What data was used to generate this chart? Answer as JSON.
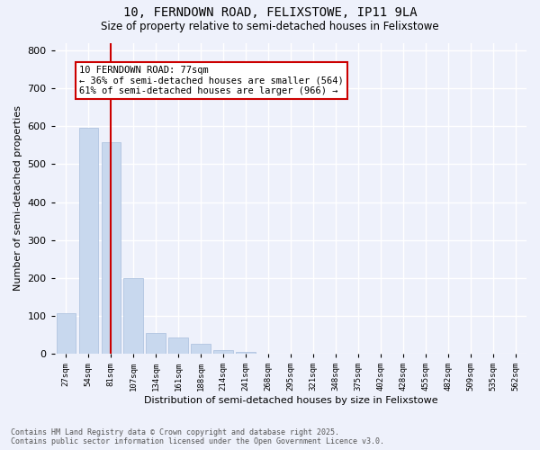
{
  "title_line1": "10, FERNDOWN ROAD, FELIXSTOWE, IP11 9LA",
  "title_line2": "Size of property relative to semi-detached houses in Felixstowe",
  "xlabel": "Distribution of semi-detached houses by size in Felixstowe",
  "ylabel": "Number of semi-detached properties",
  "bar_color": "#c8d8ee",
  "bar_edge_color": "#a8bedd",
  "bin_labels": [
    "27sqm",
    "54sqm",
    "81sqm",
    "107sqm",
    "134sqm",
    "161sqm",
    "188sqm",
    "214sqm",
    "241sqm",
    "268sqm",
    "295sqm",
    "321sqm",
    "348sqm",
    "375sqm",
    "402sqm",
    "428sqm",
    "455sqm",
    "482sqm",
    "509sqm",
    "535sqm",
    "562sqm"
  ],
  "bar_heights": [
    107,
    595,
    557,
    200,
    55,
    43,
    27,
    10,
    4,
    0,
    0,
    0,
    0,
    0,
    0,
    0,
    0,
    0,
    0,
    0,
    0
  ],
  "property_bin_index": 2,
  "annotation_title": "10 FERNDOWN ROAD: 77sqm",
  "annotation_line2": "← 36% of semi-detached houses are smaller (564)",
  "annotation_line3": "61% of semi-detached houses are larger (966) →",
  "vline_color": "#cc0000",
  "annotation_border_color": "#cc0000",
  "ylim": [
    0,
    820
  ],
  "yticks": [
    0,
    100,
    200,
    300,
    400,
    500,
    600,
    700,
    800
  ],
  "footer_line1": "Contains HM Land Registry data © Crown copyright and database right 2025.",
  "footer_line2": "Contains public sector information licensed under the Open Government Licence v3.0.",
  "background_color": "#eef1fb",
  "grid_color": "#ffffff"
}
